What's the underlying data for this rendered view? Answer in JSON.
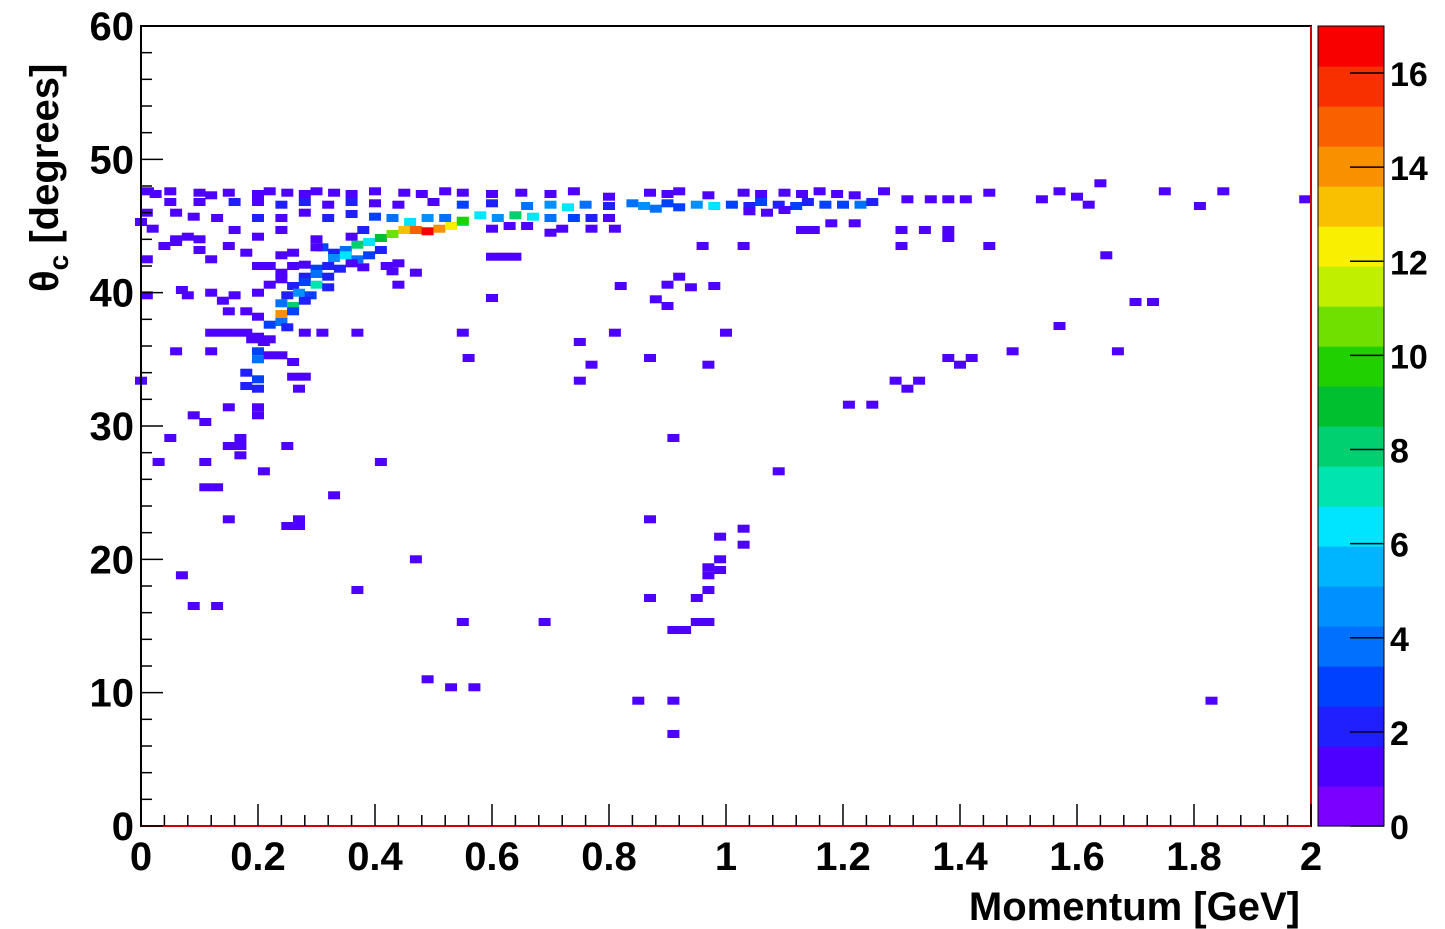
{
  "chart_data": {
    "type": "heatmap",
    "title": "",
    "xlabel": "Momentum [GeV]",
    "ylabel_symbol": "θ",
    "ylabel_subscript": "c",
    "ylabel_rest": " [degrees]",
    "xlim": [
      0,
      2
    ],
    "ylim": [
      0,
      60
    ],
    "x_tick_labels": [
      "0",
      "0.2",
      "0.4",
      "0.6",
      "0.8",
      "1",
      "1.2",
      "1.4",
      "1.6",
      "1.8",
      "2"
    ],
    "y_tick_labels": [
      "0",
      "10",
      "20",
      "30",
      "40",
      "50",
      "60"
    ],
    "colorbar": {
      "zlim": [
        0,
        17
      ],
      "tick_labels": [
        "0",
        "2",
        "4",
        "6",
        "8",
        "10",
        "12",
        "14",
        "16"
      ],
      "palette": [
        "#7a00ff",
        "#4d00ff",
        "#2020ff",
        "#0040ff",
        "#0070ff",
        "#0090ff",
        "#00b5ff",
        "#00e5ff",
        "#00e5b0",
        "#00d070",
        "#00c030",
        "#20d000",
        "#70e000",
        "#c0f000",
        "#f8f000",
        "#f8c000",
        "#f89000",
        "#f86000",
        "#f83000",
        "#f80000"
      ]
    },
    "points": [
      [
        0.012,
        47.6,
        1
      ],
      [
        0.025,
        47.4,
        1
      ],
      [
        0.05,
        47.6,
        1
      ],
      [
        0.1,
        47.5,
        1
      ],
      [
        0.12,
        47.3,
        1
      ],
      [
        0.15,
        47.5,
        1
      ],
      [
        0.2,
        47.4,
        1
      ],
      [
        0.22,
        47.6,
        1
      ],
      [
        0.25,
        47.5,
        1
      ],
      [
        0.28,
        47.4,
        1
      ],
      [
        0.3,
        47.6,
        1
      ],
      [
        0.33,
        47.5,
        1
      ],
      [
        0.36,
        47.4,
        1
      ],
      [
        0.4,
        47.6,
        1
      ],
      [
        0.45,
        47.5,
        1
      ],
      [
        0.48,
        47.4,
        1
      ],
      [
        0.52,
        47.6,
        1
      ],
      [
        0.55,
        47.5,
        1
      ],
      [
        0.6,
        47.4,
        1
      ],
      [
        0.65,
        47.5,
        1
      ],
      [
        0.7,
        47.4,
        1
      ],
      [
        0.74,
        47.6,
        1
      ],
      [
        0.8,
        47.2,
        1
      ],
      [
        0.87,
        47.5,
        1
      ],
      [
        0.9,
        47.4,
        1
      ],
      [
        0.92,
        47.6,
        1
      ],
      [
        0.97,
        47.3,
        1
      ],
      [
        1.03,
        47.5,
        1
      ],
      [
        1.06,
        47.4,
        1
      ],
      [
        1.1,
        47.5,
        1
      ],
      [
        1.13,
        47.4,
        1
      ],
      [
        1.16,
        47.6,
        1
      ],
      [
        1.19,
        47.4,
        1
      ],
      [
        1.22,
        47.3,
        1
      ],
      [
        1.27,
        47.6,
        1
      ],
      [
        1.31,
        47.0,
        1
      ],
      [
        1.35,
        47.0,
        1
      ],
      [
        1.38,
        47.0,
        1
      ],
      [
        1.41,
        47.0,
        1
      ],
      [
        1.45,
        47.5,
        1
      ],
      [
        1.54,
        47.0,
        1
      ],
      [
        1.57,
        47.6,
        1
      ],
      [
        1.6,
        47.2,
        1
      ],
      [
        1.62,
        46.6,
        1
      ],
      [
        1.64,
        48.2,
        1
      ],
      [
        1.75,
        47.6,
        1
      ],
      [
        1.85,
        47.6,
        1
      ],
      [
        1.81,
        46.5,
        1
      ],
      [
        1.99,
        47.0,
        1
      ],
      [
        0.05,
        46.8,
        1
      ],
      [
        0.1,
        46.8,
        1
      ],
      [
        0.16,
        46.8,
        2
      ],
      [
        0.2,
        46.8,
        1
      ],
      [
        0.24,
        46.6,
        2
      ],
      [
        0.28,
        46.8,
        2
      ],
      [
        0.32,
        46.6,
        1
      ],
      [
        0.36,
        46.8,
        2
      ],
      [
        0.4,
        46.7,
        1
      ],
      [
        0.44,
        46.6,
        1
      ],
      [
        0.5,
        46.8,
        1
      ],
      [
        0.55,
        46.6,
        3
      ],
      [
        0.6,
        46.7,
        2
      ],
      [
        0.66,
        46.5,
        4
      ],
      [
        0.7,
        46.6,
        5
      ],
      [
        0.73,
        46.4,
        6
      ],
      [
        0.76,
        46.6,
        4
      ],
      [
        0.8,
        46.5,
        2
      ],
      [
        0.84,
        46.7,
        4
      ],
      [
        0.86,
        46.5,
        5
      ],
      [
        0.88,
        46.3,
        4
      ],
      [
        0.9,
        46.7,
        3
      ],
      [
        0.92,
        46.4,
        3
      ],
      [
        0.95,
        46.6,
        5
      ],
      [
        0.98,
        46.5,
        6
      ],
      [
        1.01,
        46.6,
        3
      ],
      [
        1.04,
        46.5,
        2
      ],
      [
        1.06,
        46.8,
        3
      ],
      [
        1.09,
        46.6,
        2
      ],
      [
        1.12,
        46.5,
        3
      ],
      [
        1.14,
        46.8,
        2
      ],
      [
        1.17,
        46.6,
        3
      ],
      [
        1.2,
        46.6,
        3
      ],
      [
        1.23,
        46.6,
        4
      ],
      [
        1.25,
        46.8,
        2
      ],
      [
        1.07,
        46.0,
        1
      ],
      [
        1.1,
        46.2,
        1
      ],
      [
        1.04,
        46.1,
        1
      ],
      [
        0.01,
        46.0,
        1
      ],
      [
        0.06,
        46.0,
        1
      ],
      [
        0.09,
        45.7,
        1
      ],
      [
        0.13,
        45.6,
        1
      ],
      [
        0.2,
        45.6,
        2
      ],
      [
        0.24,
        45.6,
        1
      ],
      [
        0.28,
        46.0,
        1
      ],
      [
        0.32,
        45.6,
        2
      ],
      [
        0.36,
        45.9,
        2
      ],
      [
        0.4,
        45.7,
        3
      ],
      [
        0.43,
        45.6,
        4
      ],
      [
        0.46,
        45.3,
        6
      ],
      [
        0.49,
        45.6,
        5
      ],
      [
        0.52,
        45.6,
        4
      ],
      [
        0.55,
        45.3,
        7
      ],
      [
        0.58,
        45.8,
        6
      ],
      [
        0.61,
        45.6,
        5
      ],
      [
        0.64,
        45.8,
        8
      ],
      [
        0.67,
        45.7,
        6
      ],
      [
        0.7,
        45.6,
        4
      ],
      [
        0.74,
        45.6,
        3
      ],
      [
        0.77,
        45.6,
        2
      ],
      [
        0.8,
        45.6,
        1
      ],
      [
        0.6,
        44.8,
        1
      ],
      [
        0.63,
        45.0,
        1
      ],
      [
        0.66,
        45.0,
        1
      ],
      [
        0.7,
        44.5,
        1
      ],
      [
        0.72,
        44.8,
        1
      ],
      [
        0.77,
        44.8,
        1
      ],
      [
        0.81,
        44.8,
        1
      ],
      [
        1.13,
        44.7,
        1
      ],
      [
        1.15,
        44.7,
        1
      ],
      [
        1.18,
        45.2,
        1
      ],
      [
        1.22,
        45.2,
        1
      ],
      [
        1.3,
        44.7,
        1
      ],
      [
        1.34,
        44.7,
        1
      ],
      [
        1.38,
        44.7,
        1
      ],
      [
        0.0,
        45.3,
        1
      ],
      [
        0.02,
        44.8,
        1
      ],
      [
        0.06,
        44.0,
        1
      ],
      [
        0.08,
        44.2,
        1
      ],
      [
        0.1,
        44.0,
        1
      ],
      [
        0.16,
        44.7,
        1
      ],
      [
        0.2,
        44.2,
        1
      ],
      [
        0.24,
        44.7,
        1
      ],
      [
        0.3,
        44.0,
        1
      ],
      [
        0.33,
        43.0,
        2
      ],
      [
        0.35,
        43.2,
        4
      ],
      [
        0.37,
        43.6,
        8
      ],
      [
        0.39,
        43.8,
        6
      ],
      [
        0.41,
        44.1,
        9
      ],
      [
        0.43,
        44.4,
        11
      ],
      [
        0.45,
        44.7,
        13
      ],
      [
        0.47,
        44.7,
        15
      ],
      [
        0.49,
        44.6,
        17
      ],
      [
        0.51,
        44.8,
        14
      ],
      [
        0.53,
        45.0,
        12
      ],
      [
        0.55,
        45.4,
        10
      ],
      [
        0.38,
        44.7,
        2
      ],
      [
        0.36,
        44.2,
        1
      ],
      [
        0.31,
        43.4,
        3
      ],
      [
        0.33,
        42.6,
        5
      ],
      [
        0.35,
        42.8,
        6
      ],
      [
        0.37,
        42.5,
        4
      ],
      [
        0.39,
        42.8,
        3
      ],
      [
        0.41,
        43.2,
        2
      ],
      [
        0.28,
        42.1,
        1
      ],
      [
        0.3,
        41.8,
        3
      ],
      [
        0.32,
        42.0,
        2
      ],
      [
        0.34,
        41.8,
        2
      ],
      [
        0.36,
        42.2,
        1
      ],
      [
        0.38,
        41.9,
        1
      ],
      [
        0.42,
        42.0,
        1
      ],
      [
        0.44,
        42.2,
        1
      ],
      [
        0.22,
        42.0,
        1
      ],
      [
        0.24,
        41.5,
        1
      ],
      [
        0.26,
        42.0,
        1
      ],
      [
        0.28,
        41.2,
        2
      ],
      [
        0.3,
        41.4,
        4
      ],
      [
        0.32,
        41.2,
        2
      ],
      [
        0.26,
        40.5,
        2
      ],
      [
        0.28,
        40.8,
        3
      ],
      [
        0.3,
        40.6,
        7
      ],
      [
        0.32,
        40.4,
        2
      ],
      [
        0.25,
        39.8,
        2
      ],
      [
        0.27,
        40.0,
        5
      ],
      [
        0.29,
        39.8,
        3
      ],
      [
        0.24,
        39.2,
        4
      ],
      [
        0.26,
        39.0,
        8
      ],
      [
        0.28,
        39.4,
        2
      ],
      [
        0.24,
        38.4,
        14
      ],
      [
        0.26,
        38.6,
        3
      ],
      [
        0.22,
        37.6,
        3
      ],
      [
        0.24,
        37.8,
        4
      ],
      [
        0.25,
        37.4,
        2
      ],
      [
        0.2,
        36.7,
        1
      ],
      [
        0.22,
        36.5,
        1
      ],
      [
        0.2,
        35.6,
        3
      ],
      [
        0.2,
        35.0,
        4
      ],
      [
        0.22,
        35.3,
        1
      ],
      [
        0.24,
        35.3,
        1
      ],
      [
        0.26,
        34.8,
        1
      ],
      [
        0.18,
        34.0,
        2
      ],
      [
        0.2,
        33.5,
        3
      ],
      [
        0.18,
        33.0,
        2
      ],
      [
        0.2,
        32.8,
        2
      ],
      [
        0.01,
        42.5,
        1
      ],
      [
        0.04,
        43.5,
        1
      ],
      [
        0.06,
        43.8,
        1
      ],
      [
        0.1,
        43.2,
        1
      ],
      [
        0.12,
        42.5,
        1
      ],
      [
        0.15,
        43.5,
        1
      ],
      [
        0.18,
        43.0,
        1
      ],
      [
        0.2,
        42.0,
        1
      ],
      [
        0.24,
        42.8,
        1
      ],
      [
        0.26,
        43.0,
        1
      ],
      [
        0.3,
        43.4,
        1
      ],
      [
        0.43,
        41.6,
        1
      ],
      [
        0.47,
        41.5,
        1
      ],
      [
        0.44,
        40.6,
        1
      ],
      [
        0.6,
        42.7,
        1
      ],
      [
        0.62,
        42.7,
        1
      ],
      [
        0.64,
        42.7,
        1
      ],
      [
        0.01,
        39.8,
        1
      ],
      [
        0.07,
        40.2,
        1
      ],
      [
        0.08,
        39.8,
        1
      ],
      [
        0.12,
        40.0,
        1
      ],
      [
        0.14,
        39.4,
        1
      ],
      [
        0.16,
        39.8,
        1
      ],
      [
        0.2,
        40.0,
        1
      ],
      [
        0.22,
        40.6,
        1
      ],
      [
        0.24,
        41.0,
        1
      ],
      [
        0.15,
        38.6,
        1
      ],
      [
        0.18,
        38.6,
        1
      ],
      [
        0.2,
        38.2,
        1
      ],
      [
        0.6,
        39.6,
        1
      ],
      [
        0.92,
        41.2,
        1
      ],
      [
        0.82,
        40.5,
        1
      ],
      [
        0.9,
        40.6,
        1
      ],
      [
        0.94,
        40.4,
        1
      ],
      [
        0.88,
        39.5,
        1
      ],
      [
        0.9,
        39.0,
        1
      ],
      [
        0.98,
        40.5,
        1
      ],
      [
        1.7,
        39.3,
        1
      ],
      [
        1.73,
        39.3,
        1
      ],
      [
        0.96,
        43.5,
        1
      ],
      [
        1.03,
        43.5,
        1
      ],
      [
        1.3,
        43.5,
        1
      ],
      [
        1.38,
        44.1,
        1
      ],
      [
        1.45,
        43.5,
        1
      ],
      [
        1.65,
        42.8,
        1
      ],
      [
        0.12,
        37.0,
        1
      ],
      [
        0.14,
        37.0,
        1
      ],
      [
        0.16,
        37.0,
        1
      ],
      [
        0.18,
        37.0,
        1
      ],
      [
        0.28,
        37.0,
        1
      ],
      [
        0.31,
        37.0,
        1
      ],
      [
        0.37,
        37.0,
        1
      ],
      [
        0.55,
        37.0,
        1
      ],
      [
        0.75,
        36.3,
        1
      ],
      [
        0.81,
        37.0,
        1
      ],
      [
        1.0,
        37.0,
        1
      ],
      [
        1.57,
        37.5,
        1
      ],
      [
        0.06,
        35.6,
        1
      ],
      [
        0.12,
        35.6,
        1
      ],
      [
        0.19,
        36.5,
        1
      ],
      [
        0.21,
        36.3,
        1
      ],
      [
        0.56,
        35.1,
        1
      ],
      [
        0.77,
        34.6,
        1
      ],
      [
        0.87,
        35.1,
        1
      ],
      [
        0.97,
        34.6,
        1
      ],
      [
        1.38,
        35.1,
        1
      ],
      [
        1.4,
        34.6,
        1
      ],
      [
        1.42,
        35.1,
        1
      ],
      [
        1.49,
        35.6,
        1
      ],
      [
        1.67,
        35.6,
        1
      ],
      [
        0.0,
        33.4,
        1
      ],
      [
        0.26,
        33.7,
        1
      ],
      [
        0.28,
        33.7,
        1
      ],
      [
        0.27,
        32.8,
        1
      ],
      [
        0.75,
        33.4,
        1
      ],
      [
        1.29,
        33.4,
        1
      ],
      [
        1.31,
        32.8,
        1
      ],
      [
        1.33,
        33.4,
        1
      ],
      [
        1.21,
        31.6,
        1
      ],
      [
        1.25,
        31.6,
        1
      ],
      [
        0.15,
        31.4,
        1
      ],
      [
        0.2,
        31.4,
        1
      ],
      [
        0.09,
        30.8,
        1
      ],
      [
        0.11,
        30.3,
        1
      ],
      [
        0.2,
        30.8,
        1
      ],
      [
        0.17,
        29.1,
        1
      ],
      [
        0.17,
        28.5,
        1
      ],
      [
        0.15,
        28.5,
        1
      ],
      [
        0.17,
        27.8,
        1
      ],
      [
        0.05,
        29.1,
        1
      ],
      [
        0.03,
        27.3,
        1
      ],
      [
        0.11,
        27.3,
        1
      ],
      [
        0.25,
        28.5,
        1
      ],
      [
        0.41,
        27.3,
        1
      ],
      [
        0.91,
        29.1,
        1
      ],
      [
        0.21,
        26.6,
        1
      ],
      [
        1.09,
        26.6,
        1
      ],
      [
        0.11,
        25.4,
        1
      ],
      [
        0.13,
        25.4,
        1
      ],
      [
        0.33,
        24.8,
        1
      ],
      [
        0.15,
        23.0,
        1
      ],
      [
        0.25,
        22.5,
        1
      ],
      [
        0.27,
        22.5,
        1
      ],
      [
        0.27,
        23.0,
        1
      ],
      [
        0.87,
        23.0,
        1
      ],
      [
        1.03,
        22.3,
        1
      ],
      [
        1.03,
        21.1,
        1
      ],
      [
        0.99,
        21.7,
        1
      ],
      [
        0.47,
        20.0,
        1
      ],
      [
        0.99,
        20.0,
        1
      ],
      [
        0.97,
        19.4,
        1
      ],
      [
        0.99,
        19.2,
        1
      ],
      [
        0.97,
        18.8,
        1
      ],
      [
        0.07,
        18.8,
        1
      ],
      [
        0.37,
        17.7,
        1
      ],
      [
        0.97,
        17.7,
        1
      ],
      [
        0.87,
        17.1,
        1
      ],
      [
        0.95,
        17.1,
        1
      ],
      [
        0.09,
        16.5,
        1
      ],
      [
        0.13,
        16.5,
        1
      ],
      [
        0.55,
        15.3,
        1
      ],
      [
        0.69,
        15.3,
        1
      ],
      [
        0.95,
        15.3,
        1
      ],
      [
        0.97,
        15.3,
        1
      ],
      [
        0.91,
        14.7,
        1
      ],
      [
        0.93,
        14.7,
        1
      ],
      [
        0.49,
        11.0,
        1
      ],
      [
        0.53,
        10.4,
        1
      ],
      [
        0.57,
        10.4,
        1
      ],
      [
        0.85,
        9.4,
        1
      ],
      [
        0.91,
        9.4,
        1
      ],
      [
        1.83,
        9.4,
        1
      ],
      [
        0.91,
        6.9,
        1
      ]
    ]
  }
}
